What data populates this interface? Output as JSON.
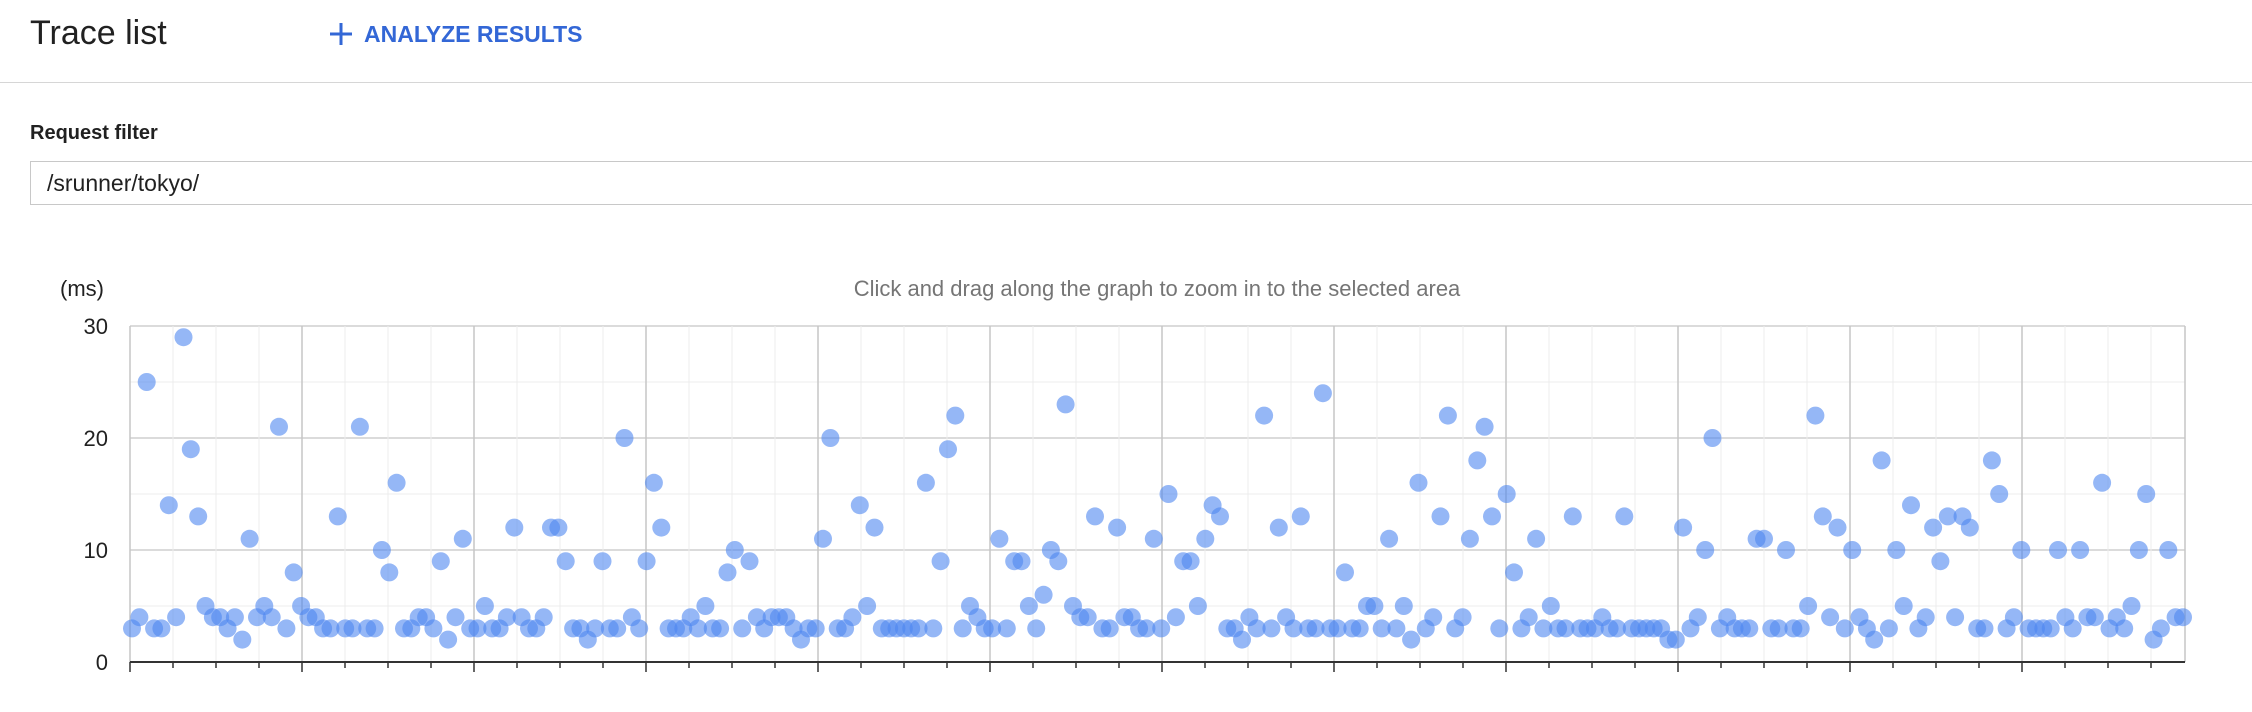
{
  "header": {
    "title": "Trace list",
    "analyze_button_label": "ANALYZE RESULTS",
    "accent_color": "#3367d6"
  },
  "filter": {
    "label": "Request filter",
    "value": "/srunner/tokyo/"
  },
  "chart": {
    "hint": "Click and drag along the graph to zoom in to the selected area",
    "unit_label": "(ms)"
  },
  "chart_data": {
    "type": "scatter",
    "ylabel": "(ms)",
    "ylim": [
      0,
      30
    ],
    "yticks": [
      0,
      10,
      20,
      30
    ],
    "grid": true,
    "point_color": "#4e87f0",
    "series": [
      {
        "values": [
          3,
          4,
          25,
          3,
          3,
          14,
          4,
          29,
          19,
          13,
          5,
          4,
          4,
          3,
          4,
          2,
          11,
          4,
          5,
          4,
          21,
          3,
          8,
          5,
          4,
          4,
          3,
          3,
          13,
          3,
          3,
          21,
          3,
          3,
          10,
          8,
          16,
          3,
          3,
          4,
          4,
          3,
          9,
          2,
          4,
          11,
          3,
          3,
          5,
          3,
          3,
          4,
          12,
          4,
          3,
          3,
          4,
          12,
          12,
          9,
          3,
          3,
          2,
          3,
          9,
          3,
          3,
          20,
          4,
          3,
          9,
          16,
          12,
          3,
          3,
          3,
          4,
          3,
          5,
          3,
          3,
          8,
          10,
          3,
          9,
          4,
          3,
          4,
          4,
          4,
          3,
          2,
          3,
          3,
          11,
          20,
          3,
          3,
          4,
          14,
          5,
          12,
          3,
          3,
          3,
          3,
          3,
          3,
          16,
          3,
          9,
          19,
          22,
          3,
          5,
          4,
          3,
          3,
          11,
          3,
          9,
          9,
          5,
          3,
          6,
          10,
          9,
          23,
          5,
          4,
          4,
          13,
          3,
          3,
          12,
          4,
          4,
          3,
          3,
          11,
          3,
          15,
          4,
          9,
          9,
          5,
          11,
          14,
          13,
          3,
          3,
          2,
          4,
          3,
          22,
          3,
          12,
          4,
          3,
          13,
          3,
          3,
          24,
          3,
          3,
          8,
          3,
          3,
          5,
          5,
          3,
          11,
          3,
          5,
          2,
          16,
          3,
          4,
          13,
          22,
          3,
          4,
          11,
          18,
          21,
          13,
          3,
          15,
          8,
          3,
          4,
          11,
          3,
          5,
          3,
          3,
          13,
          3,
          3,
          3,
          4,
          3,
          3,
          13,
          3,
          3,
          3,
          3,
          3,
          2,
          2,
          12,
          3,
          4,
          10,
          20,
          3,
          4,
          3,
          3,
          3,
          11,
          11,
          3,
          3,
          10,
          3,
          3,
          5,
          22,
          13,
          4,
          12,
          3,
          10,
          4,
          3,
          2,
          18,
          3,
          10,
          5,
          14,
          3,
          4,
          12,
          9,
          13,
          4,
          13,
          12,
          3,
          3,
          18,
          15,
          3,
          4,
          10,
          3,
          3,
          3,
          3,
          10,
          4,
          3,
          10,
          4,
          4,
          16,
          3,
          4,
          3,
          5,
          10,
          15,
          2,
          3,
          10,
          4,
          4
        ]
      }
    ]
  }
}
